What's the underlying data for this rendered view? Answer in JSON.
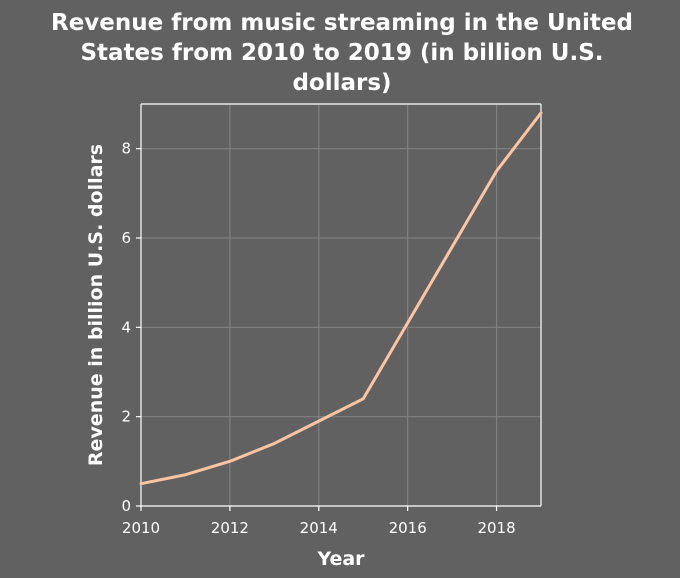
{
  "chart_data": {
    "type": "line",
    "title": "Revenue from music streaming in the United States from 2010 to 2019 (in billion U.S. dollars)",
    "title_lines": [
      "Revenue from music streaming in the United",
      "States from 2010 to 2019 (in billion U.S.",
      "dollars)"
    ],
    "xlabel": "Year",
    "ylabel": "Revenue in billion U.S. dollars",
    "x": [
      2010,
      2011,
      2012,
      2013,
      2014,
      2015,
      2016,
      2017,
      2018,
      2019
    ],
    "series": [
      {
        "values": [
          0.5,
          0.7,
          1.0,
          1.4,
          1.9,
          2.4,
          4.1,
          5.8,
          7.5,
          8.8
        ]
      }
    ],
    "xlim": [
      2010,
      2019
    ],
    "ylim": [
      0,
      9
    ],
    "xticks": [
      2010,
      2012,
      2014,
      2016,
      2018
    ],
    "yticks": [
      0,
      2,
      4,
      6,
      8
    ],
    "grid": true,
    "colors": {
      "background": "#616161",
      "grid": "#808080",
      "axis": "#ffffff",
      "line": "#fcc5a0",
      "text": "#ffffff"
    }
  }
}
